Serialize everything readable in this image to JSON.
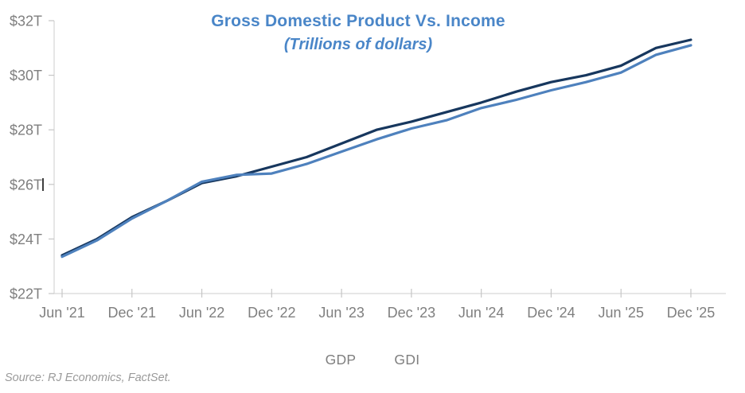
{
  "source_note": "Source: RJ Economics, FactSet.",
  "chart_data": {
    "type": "line",
    "title": "Gross Domestic Product Vs. Income",
    "subtitle": "(Trillions of dollars)",
    "title_color": "#4A86C8",
    "grid": false,
    "legend_position": "bottom-center",
    "ylim": [
      22,
      32
    ],
    "y_ticks": [
      22,
      24,
      26,
      28,
      30,
      32
    ],
    "y_tick_labels": [
      "$22T",
      "$24T",
      "$26T",
      "$28T",
      "$30T",
      "$32T"
    ],
    "x_tick_labels": [
      "Jun '21",
      "Dec '21",
      "Jun '22",
      "Dec '22",
      "Jun '23",
      "Dec '23",
      "Jun '24",
      "Dec '24",
      "Jun '25",
      "Dec '25"
    ],
    "categories": [
      "Jun '21",
      "Sep '21",
      "Dec '21",
      "Mar '22",
      "Jun '22",
      "Sep '22",
      "Dec '22",
      "Mar '23",
      "Jun '23",
      "Sep '23",
      "Dec '23",
      "Mar '24",
      "Jun '24",
      "Sep '24",
      "Dec '24",
      "Mar '25",
      "Jun '25",
      "Sep '25",
      "Dec '25"
    ],
    "series": [
      {
        "name": "GDP",
        "color": "#17375E",
        "values": [
          23.4,
          24.0,
          24.8,
          25.4,
          26.05,
          26.3,
          26.65,
          27.0,
          27.5,
          28.0,
          28.3,
          28.65,
          29.0,
          29.4,
          29.75,
          30.0,
          30.35,
          31.0,
          31.3
        ]
      },
      {
        "name": "GDI",
        "color": "#4E81BD",
        "values": [
          23.35,
          23.95,
          24.75,
          25.4,
          26.1,
          26.35,
          26.4,
          26.75,
          27.2,
          27.65,
          28.05,
          28.35,
          28.8,
          29.1,
          29.45,
          29.75,
          30.1,
          30.75,
          31.1
        ]
      }
    ],
    "axis_color": "#D6D6D6",
    "tick_color": "#C6C6C6",
    "label_color": "#7F7F7F"
  }
}
